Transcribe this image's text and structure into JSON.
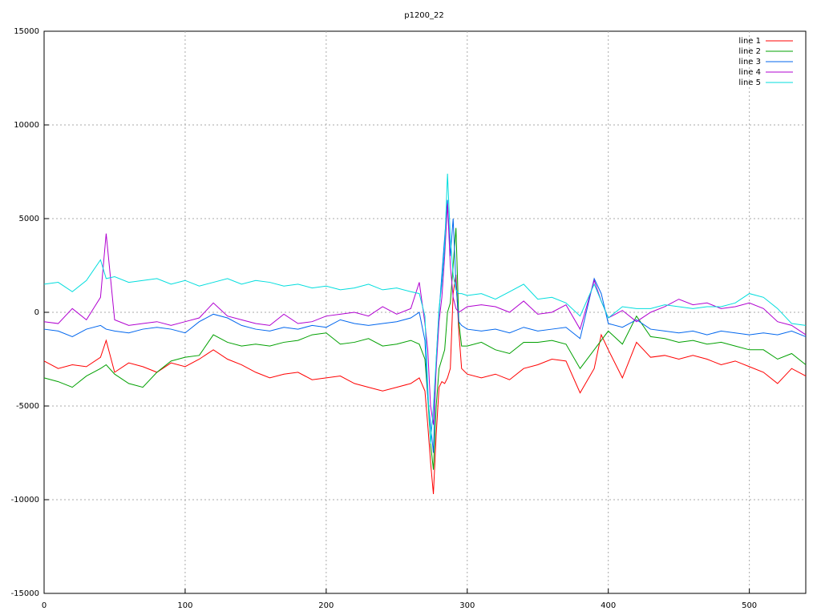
{
  "chart_data": {
    "type": "line",
    "title": "p1200_22",
    "x": [
      0,
      10,
      20,
      30,
      40,
      44,
      50,
      60,
      70,
      80,
      90,
      100,
      110,
      120,
      130,
      140,
      150,
      160,
      170,
      180,
      190,
      200,
      210,
      220,
      230,
      240,
      250,
      260,
      266,
      270,
      272,
      274,
      276,
      278,
      280,
      282,
      284,
      286,
      288,
      290,
      292,
      294,
      296,
      300,
      310,
      320,
      330,
      340,
      350,
      360,
      370,
      380,
      390,
      395,
      400,
      410,
      420,
      430,
      440,
      450,
      460,
      470,
      480,
      490,
      500,
      510,
      520,
      530,
      540
    ],
    "series": [
      {
        "name": "line 1",
        "color": "#ff0000",
        "values": [
          -2600,
          -3000,
          -2800,
          -2900,
          -2400,
          -1500,
          -3200,
          -2700,
          -2900,
          -3200,
          -2700,
          -2900,
          -2500,
          -2000,
          -2500,
          -2800,
          -3200,
          -3500,
          -3300,
          -3200,
          -3600,
          -3500,
          -3400,
          -3800,
          -4000,
          -4200,
          -4000,
          -3800,
          -3500,
          -4200,
          -6000,
          -8000,
          -9700,
          -6500,
          -4000,
          -3700,
          -3800,
          -3500,
          -3000,
          1000,
          2000,
          -1000,
          -3000,
          -3300,
          -3500,
          -3300,
          -3600,
          -3000,
          -2800,
          -2500,
          -2600,
          -4300,
          -3000,
          -1200,
          -2000,
          -3500,
          -1600,
          -2400,
          -2300,
          -2500,
          -2300,
          -2500,
          -2800,
          -2600,
          -2900,
          -3200,
          -3800,
          -3000,
          -3400
        ]
      },
      {
        "name": "line 2",
        "color": "#00a000",
        "values": [
          -3500,
          -3700,
          -4000,
          -3400,
          -3000,
          -2800,
          -3300,
          -3800,
          -4000,
          -3200,
          -2600,
          -2400,
          -2300,
          -1200,
          -1600,
          -1800,
          -1700,
          -1800,
          -1600,
          -1500,
          -1200,
          -1100,
          -1700,
          -1600,
          -1400,
          -1800,
          -1700,
          -1500,
          -1700,
          -2500,
          -4500,
          -7000,
          -8400,
          -5000,
          -3000,
          -2500,
          -2000,
          0,
          500,
          2500,
          4500,
          -500,
          -1800,
          -1800,
          -1600,
          -2000,
          -2200,
          -1600,
          -1600,
          -1500,
          -1700,
          -3000,
          -2000,
          -1500,
          -1000,
          -1700,
          -200,
          -1300,
          -1400,
          -1600,
          -1500,
          -1700,
          -1600,
          -1800,
          -2000,
          -2000,
          -2500,
          -2200,
          -2800
        ]
      },
      {
        "name": "line 3",
        "color": "#0066ee",
        "values": [
          -900,
          -1000,
          -1300,
          -900,
          -700,
          -900,
          -1000,
          -1100,
          -900,
          -800,
          -900,
          -1100,
          -500,
          -100,
          -300,
          -700,
          -900,
          -1000,
          -800,
          -900,
          -700,
          -800,
          -400,
          -600,
          -700,
          -600,
          -500,
          -300,
          0,
          -1500,
          -4500,
          -6000,
          -7500,
          -2500,
          0,
          2000,
          4000,
          6000,
          3000,
          5000,
          1500,
          -500,
          -700,
          -900,
          -1000,
          -900,
          -1100,
          -800,
          -1000,
          -900,
          -800,
          -1400,
          1800,
          1000,
          -600,
          -800,
          -400,
          -900,
          -1000,
          -1100,
          -1000,
          -1200,
          -1000,
          -1100,
          -1200,
          -1100,
          -1200,
          -1000,
          -1300
        ]
      },
      {
        "name": "line 4",
        "color": "#b000d0",
        "values": [
          -500,
          -600,
          200,
          -400,
          800,
          4200,
          -400,
          -700,
          -600,
          -500,
          -700,
          -500,
          -300,
          500,
          -200,
          -400,
          -600,
          -700,
          -100,
          -600,
          -500,
          -200,
          -100,
          0,
          -200,
          300,
          -100,
          200,
          1600,
          -600,
          -2000,
          -5000,
          -6000,
          -3000,
          -500,
          800,
          3000,
          5800,
          2500,
          800,
          200,
          0,
          100,
          300,
          400,
          300,
          0,
          600,
          -100,
          0,
          400,
          -900,
          1700,
          600,
          -300,
          100,
          -500,
          0,
          300,
          700,
          400,
          500,
          200,
          300,
          500,
          200,
          -500,
          -700,
          -1200
        ]
      },
      {
        "name": "line 5",
        "color": "#00dddd",
        "values": [
          1500,
          1600,
          1100,
          1700,
          2800,
          1800,
          1900,
          1600,
          1700,
          1800,
          1500,
          1700,
          1400,
          1600,
          1800,
          1500,
          1700,
          1600,
          1400,
          1500,
          1300,
          1400,
          1200,
          1300,
          1500,
          1200,
          1300,
          1100,
          1000,
          -200,
          -4000,
          -7000,
          -5000,
          -2500,
          200,
          1500,
          3500,
          7400,
          4000,
          2000,
          1200,
          1000,
          1000,
          900,
          1000,
          700,
          1100,
          1500,
          700,
          800,
          500,
          -200,
          1500,
          600,
          -300,
          300,
          200,
          200,
          400,
          300,
          200,
          300,
          300,
          500,
          1000,
          800,
          200,
          -600,
          -700
        ]
      }
    ],
    "xlim": [
      0,
      540
    ],
    "xticks": [
      0,
      100,
      200,
      300,
      400,
      500
    ],
    "ylim": [
      -15000,
      15000
    ],
    "yticks": [
      -15000,
      -10000,
      -5000,
      0,
      5000,
      10000,
      15000
    ],
    "grid": true,
    "legend": "top-right"
  }
}
